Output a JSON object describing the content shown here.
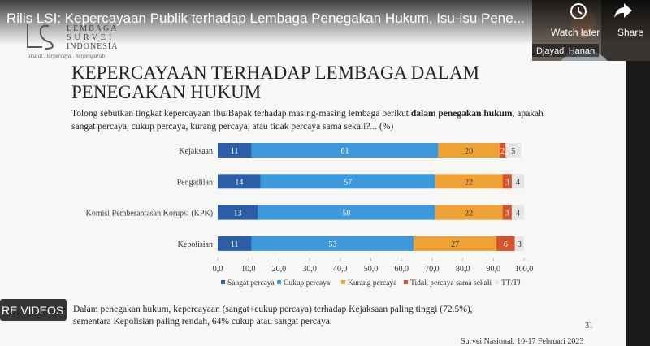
{
  "video": {
    "title": "Rilis LSI: Kepercayaan Publik terhadap Lembaga Penegakan Hukum, Isu-isu Pene...",
    "watch_later": "Watch later",
    "share": "Share",
    "presenter": "Djayadi Hanan",
    "more_videos": "RE VIDEOS"
  },
  "slide": {
    "logo_name": [
      "LEMBAGA",
      "SURVEI",
      "INDONESIA"
    ],
    "logo_tagline": "akurat . terpercaya . berpengaruh",
    "note": [
      "Dalam penegakan hukum, kepercayaan (sangat+cukup percaya) terhadap Kejaksaan paling tinggi (72.5%),",
      "sementara Kepolisian paling rendah, 64% cukup atau sangat percaya."
    ],
    "page_number": "31",
    "footer": "Survei Nasional, 10-17 Februari 2023"
  },
  "chart_data": {
    "type": "stacked_bar",
    "orientation": "horizontal",
    "title": [
      "KEPERCAYAAN TERHADAP LEMBAGA DALAM",
      "PENEGAKAN HUKUM"
    ],
    "subtitle": [
      "Tolong sebutkan tingkat kepercayaan Ibu/Bapak terhadap masing-masing lembaga berikut ",
      "dalam penegakan hukum",
      ", apakah",
      "sangat percaya, cukup percaya, kurang percaya, atau tidak percaya sama sekali?... (%)"
    ],
    "categories": [
      "Kejaksaan",
      "Pengadilan",
      "Komisi Pemberantasan Korupsi (KPK)",
      "Kepolisian"
    ],
    "series": [
      {
        "name": "Sangat percaya",
        "color": "#2b5ea7",
        "values": [
          11,
          14,
          13,
          11
        ]
      },
      {
        "name": "Cukup percaya",
        "color": "#3d98dc",
        "values": [
          61,
          57,
          58,
          53
        ]
      },
      {
        "name": "Kurang percaya",
        "color": "#eea236",
        "values": [
          20,
          22,
          22,
          27
        ]
      },
      {
        "name": "Tidak percaya sama sekali",
        "color": "#d4532b",
        "values": [
          2,
          3,
          3,
          6
        ]
      },
      {
        "name": "TT/TJ",
        "color": "#e6e6e6",
        "values": [
          5,
          4,
          4,
          3
        ]
      }
    ],
    "xlim": [
      0,
      100
    ],
    "xticks": [
      {
        "value": 0,
        "label": "0,0"
      },
      {
        "value": 10,
        "label": "10,0"
      },
      {
        "value": 20,
        "label": "20,0"
      },
      {
        "value": 30,
        "label": "30,0"
      },
      {
        "value": 40,
        "label": "40,0"
      },
      {
        "value": 50,
        "label": "50,0"
      },
      {
        "value": 60,
        "label": "60,0"
      },
      {
        "value": 70,
        "label": "70,0"
      },
      {
        "value": 80,
        "label": "80,0"
      },
      {
        "value": 90,
        "label": "90,0"
      },
      {
        "value": 100,
        "label": "100,0"
      }
    ],
    "legend": "bottom"
  }
}
